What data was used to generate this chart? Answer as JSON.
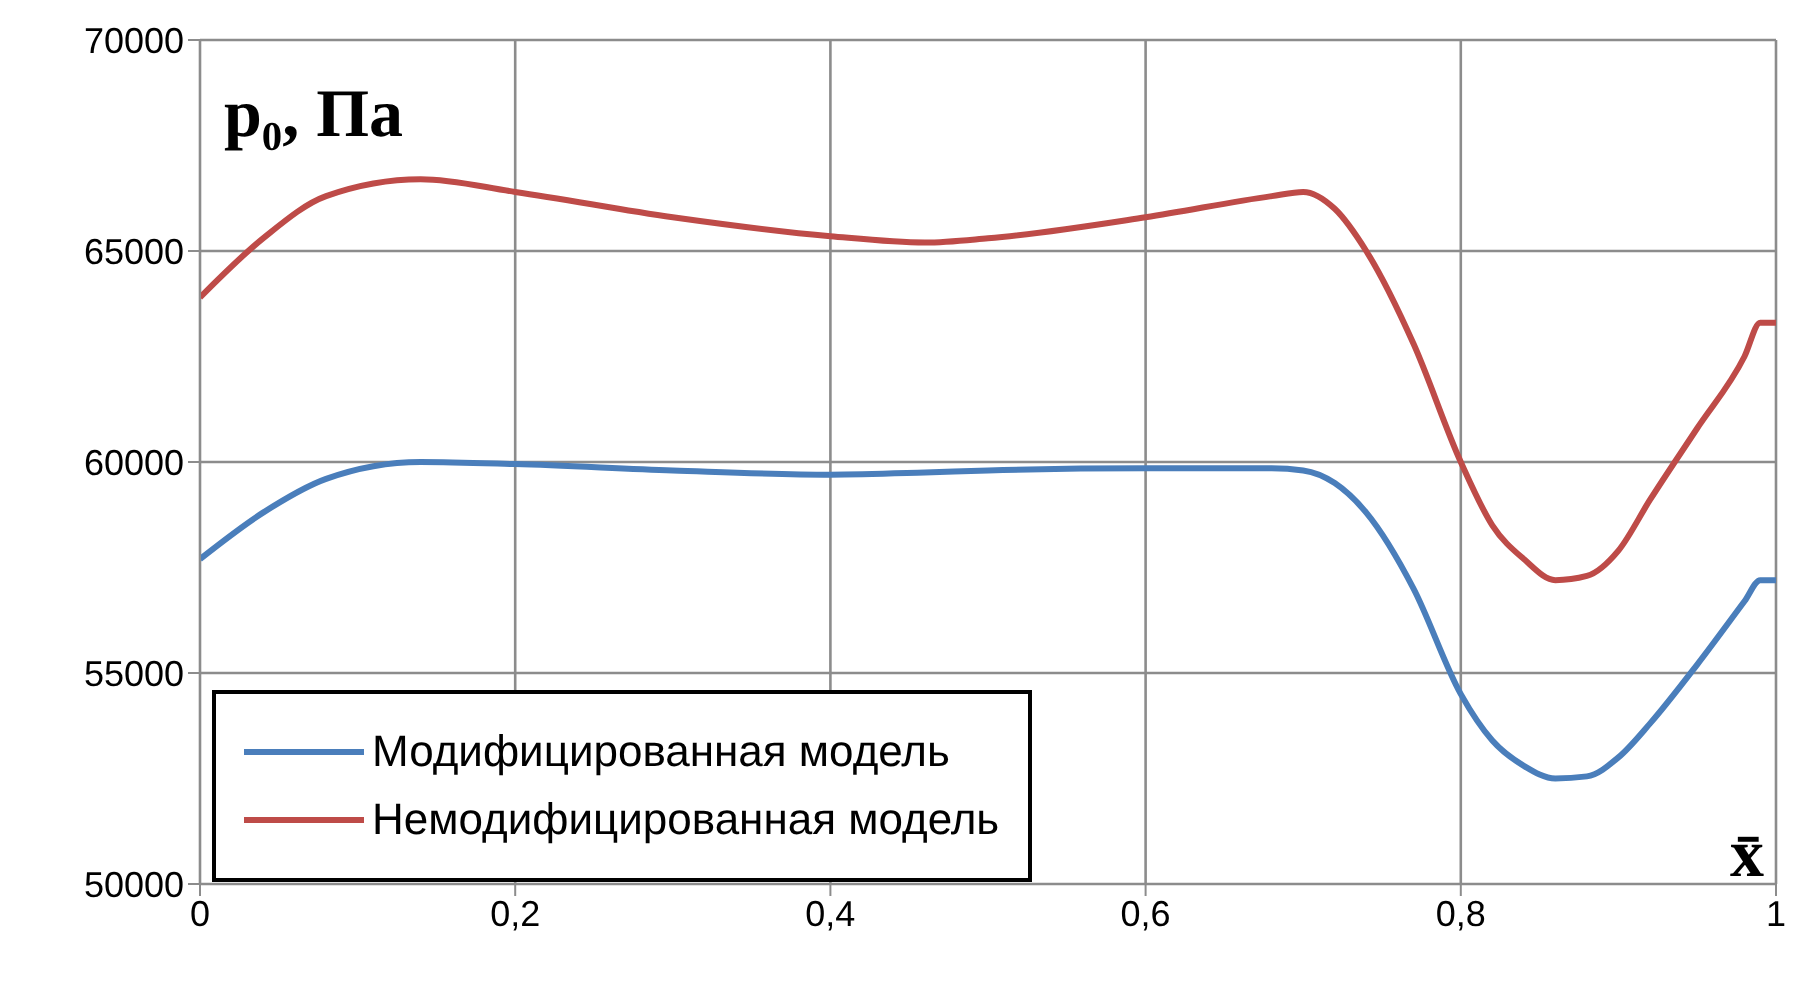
{
  "chart_data": {
    "type": "line",
    "ylabel": "p₀, Па",
    "xlabel": "x̄",
    "x": [
      0,
      0.04,
      0.08,
      0.14,
      0.2,
      0.3,
      0.4,
      0.46,
      0.5,
      0.6,
      0.68,
      0.7,
      0.72,
      0.74,
      0.77,
      0.8,
      0.82,
      0.84,
      0.86,
      0.88,
      0.9,
      0.92,
      0.95,
      0.98,
      0.99,
      1
    ],
    "series": [
      {
        "name": "Модифицированная модель",
        "color": "#4a7ebb",
        "values": [
          57700,
          58800,
          59600,
          60000,
          59950,
          59800,
          59700,
          59750,
          59800,
          59850,
          59850,
          59800,
          59500,
          58800,
          57000,
          54500,
          53400,
          52800,
          52500,
          52550,
          53000,
          53800,
          55200,
          56700,
          57200,
          57200
        ]
      },
      {
        "name": "Немодифицированная модель",
        "color": "#be4b48",
        "values": [
          63900,
          65300,
          66300,
          66700,
          66400,
          65800,
          65350,
          65200,
          65300,
          65800,
          66300,
          66400,
          66000,
          65000,
          62800,
          60000,
          58500,
          57700,
          57200,
          57300,
          57900,
          59100,
          60800,
          62500,
          63300,
          63300
        ]
      }
    ],
    "xlim": [
      0,
      1
    ],
    "xticks": [
      {
        "value": 0,
        "label": "0"
      },
      {
        "value": 0.2,
        "label": "0,2"
      },
      {
        "value": 0.4,
        "label": "0,4"
      },
      {
        "value": 0.6,
        "label": "0,6"
      },
      {
        "value": 0.8,
        "label": "0,8"
      },
      {
        "value": 1,
        "label": "1"
      }
    ],
    "ylim": [
      50000,
      70000
    ],
    "yticks": [
      50000,
      55000,
      60000,
      65000,
      70000
    ],
    "grid": true,
    "legend": "bottom left",
    "marker": "none",
    "line_style": "solid"
  }
}
